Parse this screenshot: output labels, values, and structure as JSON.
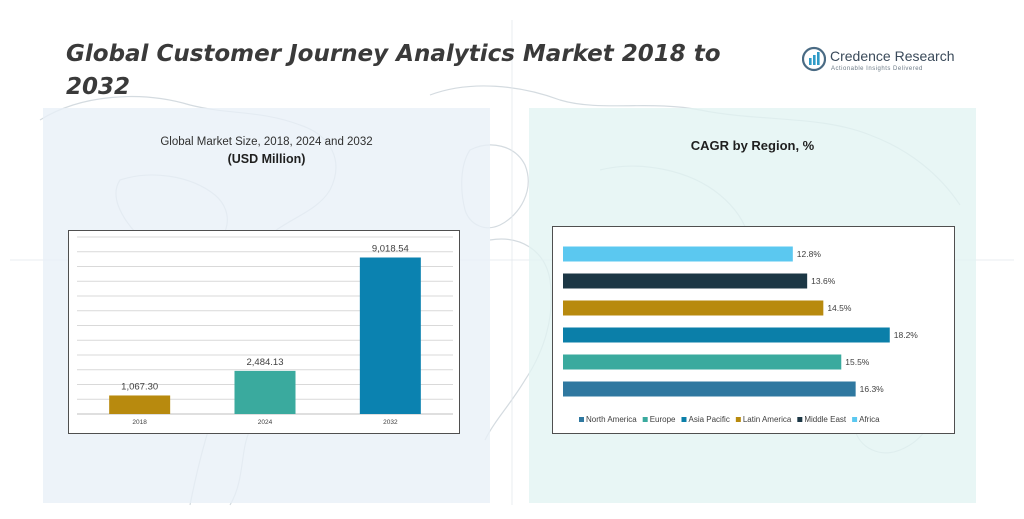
{
  "title": "Global Customer Journey Analytics Market 2018 to 2032",
  "brand": {
    "name": "Credence Research",
    "tagline": "Actionable Insights Delivered"
  },
  "left_panel": {
    "title": "Global Market Size, 2018, 2024 and 2032",
    "unit": "(USD Million)"
  },
  "right_panel": {
    "title": "CAGR by Region, %"
  },
  "chart_data": [
    {
      "type": "bar",
      "title": "Global Market Size, 2018, 2024 and 2032",
      "ylabel": "(USD Million)",
      "categories": [
        "2018",
        "2024",
        "2032"
      ],
      "values": [
        1067.3,
        2484.13,
        9018.54
      ],
      "value_labels": [
        "1,067.30",
        "2,484.13",
        "9,018.54"
      ],
      "colors": [
        "#b88a0e",
        "#3aaa9e",
        "#0b82b0"
      ],
      "ylim": [
        0,
        10200
      ],
      "grid": true
    },
    {
      "type": "bar",
      "orientation": "horizontal",
      "title": "CAGR by Region, %",
      "series": [
        {
          "name": "North America",
          "value": 16.3,
          "label": "16.3%",
          "color": "#2f78a0"
        },
        {
          "name": "Europe",
          "value": 15.5,
          "label": "15.5%",
          "color": "#3aaa9e"
        },
        {
          "name": "Asia Pacific",
          "value": 18.2,
          "label": "18.2%",
          "color": "#0b7fa9"
        },
        {
          "name": "Latin America",
          "value": 14.5,
          "label": "14.5%",
          "color": "#b88a0e"
        },
        {
          "name": "Middle East",
          "value": 13.6,
          "label": "13.6%",
          "color": "#1c3745"
        },
        {
          "name": "Africa",
          "value": 12.8,
          "label": "12.8%",
          "color": "#5bc8f0"
        }
      ],
      "xlim": [
        0,
        21.5
      ],
      "legend_position": "bottom"
    }
  ]
}
